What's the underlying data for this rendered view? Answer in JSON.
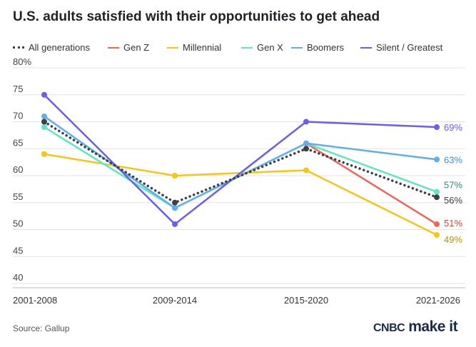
{
  "chart_data": {
    "type": "line",
    "title": "U.S. adults satisfied with their opportunities to get ahead",
    "categories": [
      "2001-2008",
      "2009-2014",
      "2015-2020",
      "2021-2026"
    ],
    "y_ticks": [
      "80%",
      "75",
      "70",
      "65",
      "60",
      "55",
      "50",
      "45",
      "40"
    ],
    "ylim": [
      40,
      80
    ],
    "grid": true,
    "legend_position": "top",
    "series": [
      {
        "name": "All generations",
        "color": "#3d4049",
        "style": "dotted",
        "values": [
          70,
          55,
          65,
          56
        ],
        "end_label": "56%"
      },
      {
        "name": "Gen Z",
        "color": "#f0645b",
        "style": "solid",
        "values": [
          null,
          null,
          66,
          51
        ],
        "end_label": "51%"
      },
      {
        "name": "Millennial",
        "color": "#f5c518",
        "style": "solid",
        "values": [
          64,
          60,
          61,
          49
        ],
        "end_label": "49%"
      },
      {
        "name": "Gen X",
        "color": "#5ee8c0",
        "style": "solid",
        "values": [
          69,
          54,
          66,
          57
        ],
        "end_label": "57%"
      },
      {
        "name": "Boomers",
        "color": "#62aeea",
        "style": "solid",
        "values": [
          71,
          54,
          66,
          63
        ],
        "end_label": "63%"
      },
      {
        "name": "Silent / Greatest",
        "color": "#6a5ef0",
        "style": "solid",
        "values": [
          75,
          51,
          70,
          69
        ],
        "end_label": "69%"
      }
    ],
    "end_label_colors": {
      "All generations": "#3d4049",
      "Gen Z": "#d64a42",
      "Millennial": "#b8920a",
      "Gen X": "#2e8f73",
      "Boomers": "#3f8fcf",
      "Silent / Greatest": "#6a5ef0"
    }
  },
  "footer": {
    "source": "Source: Gallup",
    "brand_cnbc": "CNBC",
    "brand_makeit": "make it"
  }
}
